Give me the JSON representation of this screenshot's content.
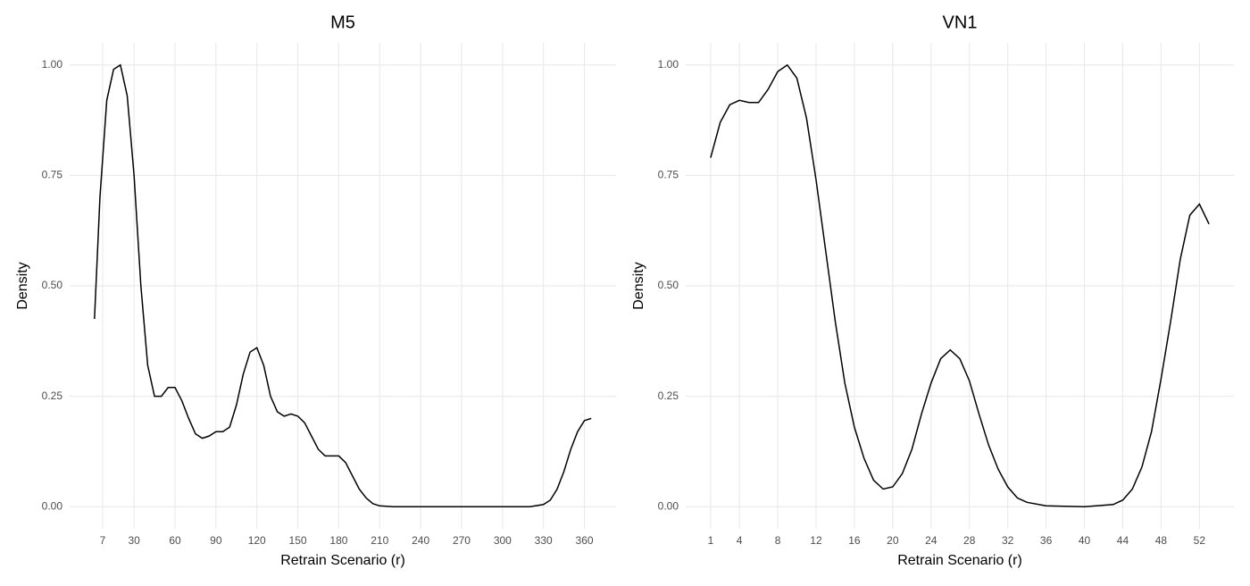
{
  "chart_data": [
    {
      "type": "line",
      "title": "M5",
      "x_label": "Retrain Scenario (r)",
      "y_label": "Density",
      "grid": true,
      "x": [
        1,
        5,
        10,
        15,
        20,
        25,
        30,
        35,
        40,
        45,
        50,
        55,
        60,
        65,
        70,
        75,
        80,
        85,
        90,
        95,
        100,
        105,
        110,
        115,
        120,
        125,
        130,
        135,
        140,
        145,
        150,
        155,
        160,
        165,
        170,
        175,
        180,
        185,
        190,
        195,
        200,
        205,
        210,
        220,
        240,
        270,
        300,
        320,
        330,
        335,
        340,
        345,
        350,
        355,
        360,
        365
      ],
      "series": [
        {
          "name": "M5",
          "color": "#000000",
          "values": [
            0.425,
            0.7,
            0.92,
            0.99,
            1.0,
            0.93,
            0.75,
            0.5,
            0.32,
            0.25,
            0.25,
            0.27,
            0.27,
            0.24,
            0.2,
            0.165,
            0.155,
            0.16,
            0.17,
            0.17,
            0.18,
            0.23,
            0.3,
            0.35,
            0.36,
            0.32,
            0.25,
            0.215,
            0.205,
            0.21,
            0.205,
            0.19,
            0.16,
            0.13,
            0.115,
            0.115,
            0.115,
            0.1,
            0.07,
            0.04,
            0.02,
            0.007,
            0.002,
            0,
            0,
            0,
            0,
            0,
            0.005,
            0.015,
            0.04,
            0.08,
            0.13,
            0.17,
            0.195,
            0.2
          ]
        }
      ],
      "xlim": [
        -17.2,
        383.2
      ],
      "xticks": [
        7,
        30,
        60,
        90,
        120,
        150,
        180,
        210,
        240,
        270,
        300,
        330,
        360
      ],
      "ylim": [
        -0.05,
        1.05
      ],
      "yticks": [
        {
          "value": 0,
          "label": "0.00"
        },
        {
          "value": 0.25,
          "label": "0.25"
        },
        {
          "value": 0.5,
          "label": "0.50"
        },
        {
          "value": 0.75,
          "label": "0.75"
        },
        {
          "value": 1,
          "label": "1.00"
        }
      ]
    },
    {
      "type": "line",
      "title": "VN1",
      "x_label": "Retrain Scenario (r)",
      "y_label": "Density",
      "grid": true,
      "x": [
        1,
        2,
        3,
        4,
        5,
        6,
        7,
        8,
        9,
        10,
        11,
        12,
        13,
        14,
        15,
        16,
        17,
        18,
        19,
        20,
        21,
        22,
        23,
        24,
        25,
        26,
        27,
        28,
        29,
        30,
        31,
        32,
        33,
        34,
        36,
        40,
        43,
        44,
        45,
        46,
        47,
        48,
        49,
        50,
        51,
        52,
        53
      ],
      "series": [
        {
          "name": "VN1",
          "color": "#000000",
          "values": [
            0.79,
            0.87,
            0.91,
            0.92,
            0.915,
            0.915,
            0.945,
            0.985,
            1.0,
            0.97,
            0.88,
            0.74,
            0.58,
            0.42,
            0.28,
            0.18,
            0.11,
            0.06,
            0.04,
            0.045,
            0.075,
            0.13,
            0.21,
            0.28,
            0.335,
            0.355,
            0.335,
            0.285,
            0.21,
            0.14,
            0.085,
            0.045,
            0.02,
            0.01,
            0.002,
            0,
            0.005,
            0.015,
            0.04,
            0.09,
            0.17,
            0.29,
            0.42,
            0.56,
            0.66,
            0.685,
            0.64
          ]
        }
      ],
      "xlim": [
        -1.6,
        55.6
      ],
      "xticks": [
        1,
        4,
        8,
        12,
        16,
        20,
        24,
        28,
        32,
        36,
        40,
        44,
        48,
        52
      ],
      "ylim": [
        -0.05,
        1.05
      ],
      "yticks": [
        {
          "value": 0,
          "label": "0.00"
        },
        {
          "value": 0.25,
          "label": "0.25"
        },
        {
          "value": 0.5,
          "label": "0.50"
        },
        {
          "value": 0.75,
          "label": "0.75"
        },
        {
          "value": 1,
          "label": "1.00"
        }
      ]
    }
  ]
}
